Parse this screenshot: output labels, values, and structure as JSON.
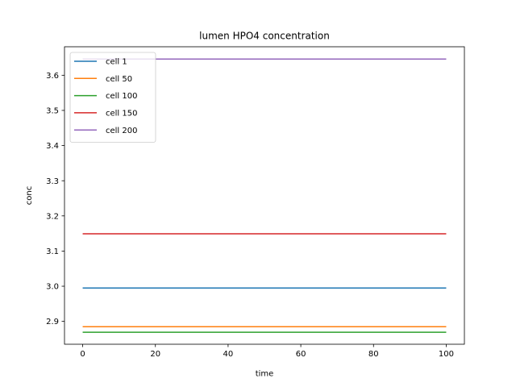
{
  "chart_data": {
    "type": "line",
    "title": "lumen HPO4 concentration",
    "xlabel": "time",
    "ylabel": "conc",
    "xlim": [
      -5,
      105
    ],
    "ylim": [
      2.835,
      3.681
    ],
    "xticks": [
      0,
      20,
      40,
      60,
      80,
      100
    ],
    "xtick_labels": [
      "0",
      "20",
      "40",
      "60",
      "80",
      "100"
    ],
    "yticks": [
      2.9,
      3.0,
      3.1,
      3.2,
      3.3,
      3.4,
      3.5,
      3.6
    ],
    "ytick_labels": [
      "2.9",
      "3.0",
      "3.1",
      "3.2",
      "3.3",
      "3.4",
      "3.5",
      "3.6"
    ],
    "grid": false,
    "legend_position": "upper-left",
    "x": [
      0,
      100
    ],
    "series": [
      {
        "name": "cell 1",
        "color": "#1f77b4",
        "values": [
          2.995,
          2.995
        ]
      },
      {
        "name": "cell 50",
        "color": "#ff7f0e",
        "values": [
          2.885,
          2.885
        ]
      },
      {
        "name": "cell 100",
        "color": "#2ca02c",
        "values": [
          2.869,
          2.869
        ]
      },
      {
        "name": "cell 150",
        "color": "#d62728",
        "values": [
          3.149,
          3.149
        ]
      },
      {
        "name": "cell 200",
        "color": "#9467bd",
        "values": [
          3.646,
          3.646
        ]
      }
    ]
  }
}
